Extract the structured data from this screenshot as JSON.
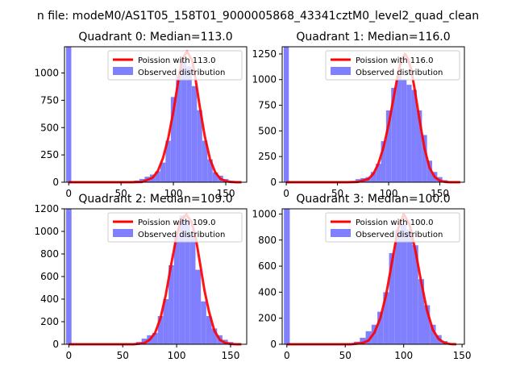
{
  "figure": {
    "suptitle": "n file: modeM0/AS1T05_158T01_9000005868_43341cztM0_level2_quad_clean"
  },
  "legend_labels": {
    "observed": "Observed distribution"
  },
  "colors": {
    "hist": "#8080ff",
    "fit": "#ff0000"
  },
  "chart_data": [
    {
      "type": "bar",
      "title": "Quadrant 0: Median=113.0",
      "median": 113.0,
      "fit_label": "Poission with 113.0",
      "xlim": [
        -4,
        170
      ],
      "ylim": [
        0,
        1240
      ],
      "xticks": [
        0,
        50,
        100,
        150
      ],
      "yticks": [
        0,
        250,
        500,
        750,
        1000
      ],
      "grid": false,
      "legend_position": "upper-right",
      "hist_x": [
        0,
        60,
        65,
        70,
        75,
        80,
        85,
        90,
        95,
        100,
        105,
        110,
        115,
        120,
        125,
        130,
        135,
        140,
        145,
        150,
        155,
        160
      ],
      "hist_values": [
        1240,
        5,
        15,
        30,
        50,
        70,
        100,
        180,
        380,
        780,
        980,
        1120,
        1060,
        880,
        660,
        380,
        210,
        90,
        60,
        30,
        12,
        5
      ],
      "fit_x": [
        0,
        60,
        70,
        80,
        85,
        90,
        95,
        100,
        105,
        108,
        113,
        118,
        121,
        125,
        130,
        135,
        140,
        145,
        150,
        155,
        160,
        165
      ],
      "fit_y": [
        0,
        0,
        3,
        40,
        100,
        220,
        400,
        650,
        950,
        1120,
        1200,
        1110,
        950,
        700,
        420,
        210,
        90,
        30,
        10,
        3,
        0,
        0
      ]
    },
    {
      "type": "bar",
      "title": "Quadrant 1: Median=116.0",
      "median": 116.0,
      "fit_label": "Poission with 116.0",
      "xlim": [
        -4,
        174
      ],
      "ylim": [
        0,
        1320
      ],
      "xticks": [
        0,
        50,
        100,
        150
      ],
      "yticks": [
        0,
        250,
        500,
        750,
        1000,
        1250
      ],
      "grid": false,
      "legend_position": "upper-right",
      "hist_x": [
        0,
        65,
        70,
        75,
        80,
        85,
        90,
        95,
        100,
        105,
        110,
        115,
        120,
        125,
        130,
        135,
        140,
        145,
        150,
        155,
        160
      ],
      "hist_values": [
        1320,
        10,
        30,
        40,
        50,
        100,
        180,
        400,
        700,
        920,
        1040,
        1000,
        950,
        900,
        700,
        460,
        210,
        100,
        50,
        20,
        5
      ],
      "fit_x": [
        0,
        60,
        70,
        80,
        85,
        90,
        95,
        100,
        105,
        110,
        113,
        116,
        119,
        122,
        125,
        130,
        135,
        140,
        145,
        150,
        155,
        160,
        165,
        170
      ],
      "fit_y": [
        0,
        0,
        3,
        30,
        80,
        180,
        340,
        560,
        830,
        1100,
        1200,
        1250,
        1200,
        1100,
        930,
        620,
        330,
        140,
        50,
        15,
        3,
        0,
        0,
        0
      ]
    },
    {
      "type": "bar",
      "title": "Quadrant 2: Median=109.0",
      "median": 109.0,
      "fit_label": "Poission with 109.0",
      "xlim": [
        -4,
        165
      ],
      "ylim": [
        0,
        1200
      ],
      "xticks": [
        0,
        50,
        100,
        150
      ],
      "yticks": [
        0,
        200,
        400,
        600,
        800,
        1000,
        1200
      ],
      "grid": false,
      "legend_position": "upper-right",
      "hist_x": [
        0,
        60,
        65,
        70,
        75,
        80,
        85,
        90,
        95,
        100,
        105,
        110,
        115,
        120,
        125,
        130,
        135,
        140,
        145,
        150,
        155
      ],
      "hist_values": [
        1200,
        5,
        20,
        50,
        80,
        100,
        250,
        400,
        700,
        960,
        1140,
        1100,
        960,
        660,
        380,
        250,
        140,
        80,
        40,
        20,
        5
      ],
      "fit_x": [
        0,
        60,
        70,
        75,
        80,
        85,
        90,
        95,
        100,
        104,
        109,
        114,
        118,
        122,
        126,
        130,
        135,
        140,
        145,
        150,
        155,
        160
      ],
      "fit_y": [
        0,
        0,
        10,
        40,
        100,
        230,
        440,
        710,
        960,
        1100,
        1150,
        1080,
        930,
        700,
        470,
        290,
        120,
        40,
        12,
        3,
        0,
        0
      ]
    },
    {
      "type": "bar",
      "title": "Quadrant 3: Median=100.0",
      "median": 100.0,
      "fit_label": "Poission with 100.0",
      "xlim": [
        -4,
        152
      ],
      "ylim": [
        0,
        1040
      ],
      "xticks": [
        0,
        50,
        100,
        150
      ],
      "yticks": [
        0,
        200,
        400,
        600,
        800,
        1000
      ],
      "grid": false,
      "legend_position": "upper-right",
      "hist_x": [
        0,
        55,
        60,
        65,
        70,
        75,
        80,
        85,
        90,
        95,
        100,
        105,
        110,
        115,
        120,
        125,
        130,
        135,
        140
      ],
      "hist_values": [
        1040,
        5,
        20,
        50,
        100,
        150,
        250,
        400,
        700,
        880,
        920,
        880,
        760,
        500,
        300,
        150,
        70,
        25,
        5
      ],
      "fit_x": [
        0,
        55,
        65,
        70,
        75,
        80,
        85,
        90,
        95,
        100,
        105,
        110,
        115,
        120,
        125,
        130,
        135,
        140,
        145
      ],
      "fit_y": [
        0,
        0,
        10,
        30,
        90,
        200,
        380,
        630,
        880,
        1000,
        920,
        720,
        480,
        260,
        110,
        40,
        10,
        2,
        0
      ]
    }
  ]
}
